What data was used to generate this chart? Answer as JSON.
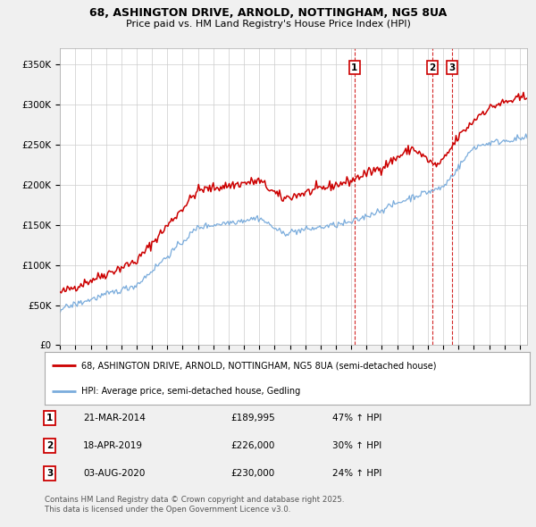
{
  "title1": "68, ASHINGTON DRIVE, ARNOLD, NOTTINGHAM, NG5 8UA",
  "title2": "Price paid vs. HM Land Registry's House Price Index (HPI)",
  "ylabel_ticks": [
    "£0",
    "£50K",
    "£100K",
    "£150K",
    "£200K",
    "£250K",
    "£300K",
    "£350K"
  ],
  "ytick_values": [
    0,
    50000,
    100000,
    150000,
    200000,
    250000,
    300000,
    350000
  ],
  "ylim": [
    0,
    370000
  ],
  "xlim_start": 1995.0,
  "xlim_end": 2025.5,
  "background_color": "#f0f0f0",
  "plot_background": "#ffffff",
  "red_line_color": "#cc0000",
  "blue_line_color": "#7aacdc",
  "vline_color": "#cc0000",
  "grid_color": "#cccccc",
  "transaction1": {
    "date_num": 2014.22,
    "price": 189995,
    "label": "1"
  },
  "transaction2": {
    "date_num": 2019.3,
    "price": 226000,
    "label": "2"
  },
  "transaction3": {
    "date_num": 2020.59,
    "price": 230000,
    "label": "3"
  },
  "legend_red_label": "68, ASHINGTON DRIVE, ARNOLD, NOTTINGHAM, NG5 8UA (semi-detached house)",
  "legend_blue_label": "HPI: Average price, semi-detached house, Gedling",
  "table_entries": [
    {
      "num": "1",
      "date": "21-MAR-2014",
      "price": "£189,995",
      "change": "47% ↑ HPI"
    },
    {
      "num": "2",
      "date": "18-APR-2019",
      "price": "£226,000",
      "change": "30% ↑ HPI"
    },
    {
      "num": "3",
      "date": "03-AUG-2020",
      "price": "£230,000",
      "change": "24% ↑ HPI"
    }
  ],
  "footnote": "Contains HM Land Registry data © Crown copyright and database right 2025.\nThis data is licensed under the Open Government Licence v3.0."
}
